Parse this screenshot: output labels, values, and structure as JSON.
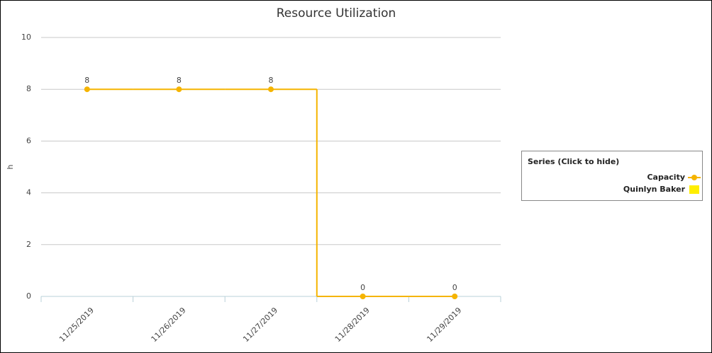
{
  "chart_data": {
    "type": "step-line",
    "title": "Resource Utilization",
    "y_label": "h",
    "categories": [
      "11/25/2019",
      "11/26/2019",
      "11/27/2019",
      "11/28/2019",
      "11/29/2019"
    ],
    "series": [
      {
        "name": "Capacity",
        "color": "#f5b400",
        "kind": "step-line",
        "values": [
          8,
          8,
          8,
          0,
          0
        ]
      },
      {
        "name": "Quinlyn Baker",
        "color": "#ffee00",
        "kind": "bar",
        "values": [
          0,
          0,
          0,
          0,
          0
        ]
      }
    ],
    "ylim": [
      0,
      10
    ],
    "yticks": [
      0,
      2,
      4,
      6,
      8,
      10
    ],
    "grid": true,
    "legend": {
      "title": "Series (Click to hide)",
      "position": "right"
    }
  }
}
